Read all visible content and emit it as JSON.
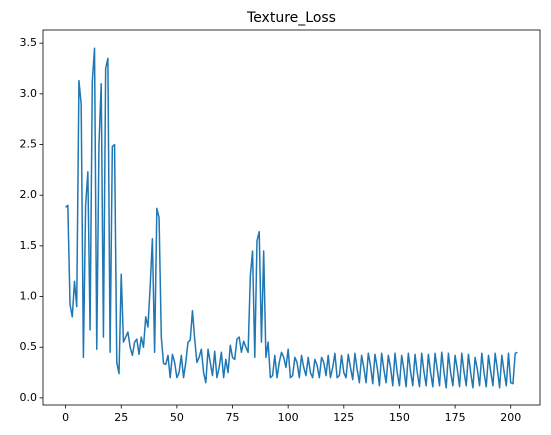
{
  "chart_data": {
    "type": "line",
    "title": "Texture_Loss",
    "x": [
      0,
      1,
      2,
      3,
      4,
      5,
      6,
      7,
      8,
      9,
      10,
      11,
      12,
      13,
      14,
      15,
      16,
      17,
      18,
      19,
      20,
      21,
      22,
      23,
      24,
      25,
      26,
      27,
      28,
      29,
      30,
      31,
      32,
      33,
      34,
      35,
      36,
      37,
      38,
      39,
      40,
      41,
      42,
      43,
      44,
      45,
      46,
      47,
      48,
      49,
      50,
      51,
      52,
      53,
      54,
      55,
      56,
      57,
      58,
      59,
      60,
      61,
      62,
      63,
      64,
      65,
      66,
      67,
      68,
      69,
      70,
      71,
      72,
      73,
      74,
      75,
      76,
      77,
      78,
      79,
      80,
      81,
      82,
      83,
      84,
      85,
      86,
      87,
      88,
      89,
      90,
      91,
      92,
      93,
      94,
      95,
      96,
      97,
      98,
      99,
      100,
      101,
      102,
      103,
      104,
      105,
      106,
      107,
      108,
      109,
      110,
      111,
      112,
      113,
      114,
      115,
      116,
      117,
      118,
      119,
      120,
      121,
      122,
      123,
      124,
      125,
      126,
      127,
      128,
      129,
      130,
      131,
      132,
      133,
      134,
      135,
      136,
      137,
      138,
      139,
      140,
      141,
      142,
      143,
      144,
      145,
      146,
      147,
      148,
      149,
      150,
      151,
      152,
      153,
      154,
      155,
      156,
      157,
      158,
      159,
      160,
      161,
      162,
      163,
      164,
      165,
      166,
      167,
      168,
      169,
      170,
      171,
      172,
      173,
      174,
      175,
      176,
      177,
      178,
      179,
      180,
      181,
      182,
      183,
      184,
      185,
      186,
      187,
      188,
      189,
      190,
      191,
      192,
      193,
      194,
      195,
      196,
      197,
      198,
      199,
      200,
      201,
      202,
      203
    ],
    "series": [
      {
        "color": "#1f77b4",
        "values": [
          1.88,
          1.9,
          0.92,
          0.8,
          1.15,
          0.9,
          3.13,
          2.9,
          0.4,
          1.9,
          2.23,
          0.67,
          3.12,
          3.45,
          0.48,
          2.5,
          3.1,
          0.6,
          3.25,
          3.35,
          0.45,
          2.48,
          2.5,
          0.35,
          0.24,
          1.22,
          0.55,
          0.6,
          0.65,
          0.5,
          0.42,
          0.55,
          0.58,
          0.43,
          0.6,
          0.5,
          0.8,
          0.7,
          1.1,
          1.57,
          0.45,
          1.87,
          1.78,
          0.6,
          0.34,
          0.33,
          0.42,
          0.2,
          0.43,
          0.35,
          0.2,
          0.25,
          0.42,
          0.2,
          0.35,
          0.55,
          0.57,
          0.86,
          0.58,
          0.35,
          0.4,
          0.48,
          0.25,
          0.15,
          0.48,
          0.35,
          0.22,
          0.46,
          0.2,
          0.3,
          0.45,
          0.2,
          0.38,
          0.25,
          0.52,
          0.4,
          0.38,
          0.58,
          0.6,
          0.45,
          0.56,
          0.5,
          0.45,
          1.2,
          1.45,
          0.4,
          1.55,
          1.64,
          0.55,
          1.45,
          0.4,
          0.55,
          0.2,
          0.22,
          0.42,
          0.2,
          0.35,
          0.45,
          0.4,
          0.3,
          0.48,
          0.2,
          0.22,
          0.4,
          0.35,
          0.2,
          0.42,
          0.3,
          0.22,
          0.4,
          0.25,
          0.2,
          0.38,
          0.32,
          0.2,
          0.4,
          0.35,
          0.22,
          0.42,
          0.2,
          0.3,
          0.44,
          0.2,
          0.22,
          0.42,
          0.25,
          0.2,
          0.43,
          0.3,
          0.18,
          0.44,
          0.28,
          0.15,
          0.42,
          0.3,
          0.15,
          0.44,
          0.32,
          0.14,
          0.43,
          0.3,
          0.12,
          0.44,
          0.28,
          0.15,
          0.42,
          0.3,
          0.12,
          0.44,
          0.25,
          0.12,
          0.42,
          0.28,
          0.11,
          0.44,
          0.26,
          0.12,
          0.43,
          0.25,
          0.11,
          0.44,
          0.26,
          0.12,
          0.43,
          0.25,
          0.11,
          0.44,
          0.28,
          0.12,
          0.45,
          0.26,
          0.1,
          0.44,
          0.25,
          0.12,
          0.42,
          0.28,
          0.11,
          0.44,
          0.26,
          0.12,
          0.43,
          0.25,
          0.1,
          0.4,
          0.28,
          0.12,
          0.44,
          0.25,
          0.11,
          0.42,
          0.26,
          0.12,
          0.44,
          0.28,
          0.1,
          0.42,
          0.26,
          0.12,
          0.44,
          0.15,
          0.14,
          0.44,
          0.45
        ]
      }
    ],
    "xlim": [
      -10.15,
      213.15
    ],
    "xticks": [
      0,
      25,
      50,
      75,
      100,
      125,
      150,
      175,
      200
    ],
    "ylim": [
      -0.07,
      3.63
    ],
    "yticks": [
      {
        "value": 0,
        "label": "0.0"
      },
      {
        "value": 0.5,
        "label": "0.5"
      },
      {
        "value": 1,
        "label": "1.0"
      },
      {
        "value": 1.5,
        "label": "1.5"
      },
      {
        "value": 2,
        "label": "2.0"
      },
      {
        "value": 2.5,
        "label": "2.5"
      },
      {
        "value": 3,
        "label": "3.0"
      },
      {
        "value": 3.5,
        "label": "3.5"
      }
    ]
  }
}
